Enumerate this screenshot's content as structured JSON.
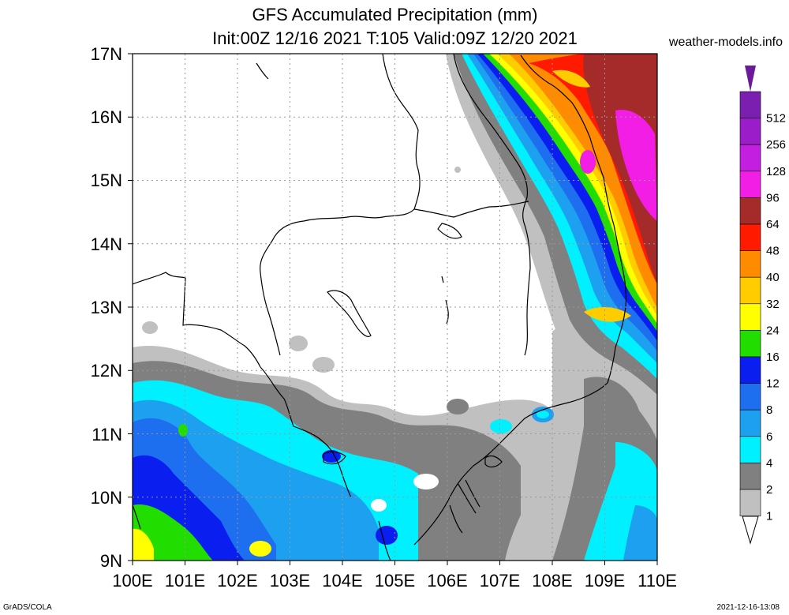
{
  "title": {
    "line1": "GFS Accumulated Precipitation (mm)",
    "line2": "Init:00Z 12/16 2021 T:105 Valid:09Z 12/20 2021",
    "site": "weather-models.info"
  },
  "footer": {
    "left": "GrADS/COLA",
    "right": "2021-12-16-13:08"
  },
  "map": {
    "lon_labels": [
      "100E",
      "101E",
      "102E",
      "103E",
      "104E",
      "105E",
      "106E",
      "107E",
      "108E",
      "109E",
      "110E"
    ],
    "lat_labels": [
      "17N",
      "16N",
      "15N",
      "14N",
      "13N",
      "12N",
      "11N",
      "10N",
      "9N"
    ]
  },
  "legend": {
    "items": [
      {
        "label": "512",
        "color": "#7a1fb0"
      },
      {
        "label": "256",
        "color": "#9b1cc9"
      },
      {
        "label": "128",
        "color": "#c21fe0"
      },
      {
        "label": "96",
        "color": "#f21ee6"
      },
      {
        "label": "64",
        "color": "#a52a2a"
      },
      {
        "label": "48",
        "color": "#ff1a00"
      },
      {
        "label": "40",
        "color": "#ff8c00"
      },
      {
        "label": "32",
        "color": "#ffcc00"
      },
      {
        "label": "24",
        "color": "#ffff00"
      },
      {
        "label": "16",
        "color": "#22dd00"
      },
      {
        "label": "12",
        "color": "#0a1ef0"
      },
      {
        "label": "8",
        "color": "#1e6ef0"
      },
      {
        "label": "6",
        "color": "#1ea0f0"
      },
      {
        "label": "4",
        "color": "#00f0ff"
      },
      {
        "label": "2",
        "color": "#808080"
      },
      {
        "label": "1",
        "color": "#c0c0c0"
      }
    ],
    "top_color": "#6a1a9a",
    "bottom_color": "#ffffff"
  }
}
